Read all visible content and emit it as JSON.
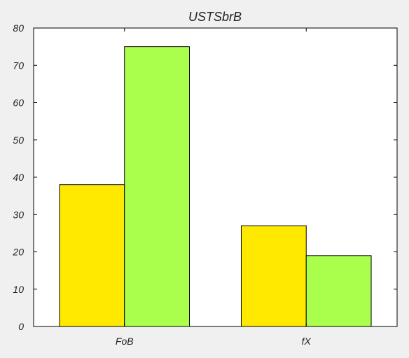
{
  "chart_data": {
    "type": "bar",
    "title": "USTSbrB",
    "xlabel": "",
    "ylabel": "",
    "categories": [
      "FoB",
      "fX"
    ],
    "series": [
      {
        "values": [
          38,
          27
        ],
        "color": "#ffe900"
      },
      {
        "values": [
          75,
          19
        ],
        "color": "#aaff4d"
      }
    ],
    "ylim": [
      0,
      80
    ],
    "yticks": [
      0,
      10,
      20,
      30,
      40,
      50,
      60,
      70,
      80
    ],
    "grid": false,
    "legend": "none"
  }
}
